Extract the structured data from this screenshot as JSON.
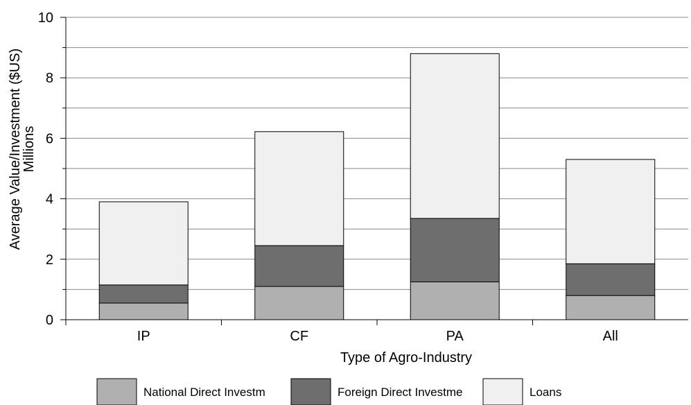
{
  "chart_data": {
    "type": "bar",
    "stacked": true,
    "categories": [
      "IP",
      "CF",
      "PA",
      "All"
    ],
    "series": [
      {
        "name": "National Direct Investment",
        "legend_label": "National Direct Investm",
        "color": "#b0b0b0",
        "values": [
          0.55,
          1.1,
          1.25,
          0.8
        ]
      },
      {
        "name": "Foreign Direct Investment",
        "legend_label": "Foreign Direct Investme",
        "color": "#6e6e6e",
        "values": [
          0.6,
          1.35,
          2.1,
          1.05
        ]
      },
      {
        "name": "Loans",
        "legend_label": "Loans",
        "color": "#f0f0f0",
        "values": [
          2.75,
          3.77,
          5.45,
          3.45
        ]
      }
    ],
    "ylim": [
      0,
      10
    ],
    "yticks": [
      0,
      2,
      4,
      6,
      8,
      10
    ],
    "ylabel": "Average Value/Investment ($US)",
    "ylabel_unit": "Millions",
    "xlabel": "Type of Agro-Industry",
    "grid": true,
    "legend_position": "bottom"
  }
}
